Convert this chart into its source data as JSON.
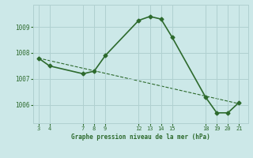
{
  "x": [
    3,
    4,
    7,
    8,
    9,
    12,
    13,
    14,
    15,
    18,
    19,
    20,
    21
  ],
  "y": [
    1007.8,
    1007.5,
    1007.2,
    1007.3,
    1007.9,
    1009.25,
    1009.4,
    1009.3,
    1008.6,
    1006.3,
    1005.7,
    1005.7,
    1006.1
  ],
  "trend_x": [
    3,
    21
  ],
  "trend_y": [
    1007.8,
    1006.05
  ],
  "line_color": "#2d6a2d",
  "marker_color": "#2d6a2d",
  "bg_color": "#cce8e8",
  "grid_color": "#b0d0d0",
  "xlabel": "Graphe pression niveau de la mer (hPa)",
  "xlabel_color": "#2d6a2d",
  "tick_color": "#2d6a2d",
  "xticks": [
    3,
    4,
    7,
    8,
    9,
    12,
    13,
    14,
    15,
    18,
    19,
    20,
    21
  ],
  "yticks": [
    1006,
    1007,
    1008,
    1009
  ],
  "ylim": [
    1005.3,
    1009.85
  ],
  "xlim": [
    2.5,
    21.8
  ]
}
